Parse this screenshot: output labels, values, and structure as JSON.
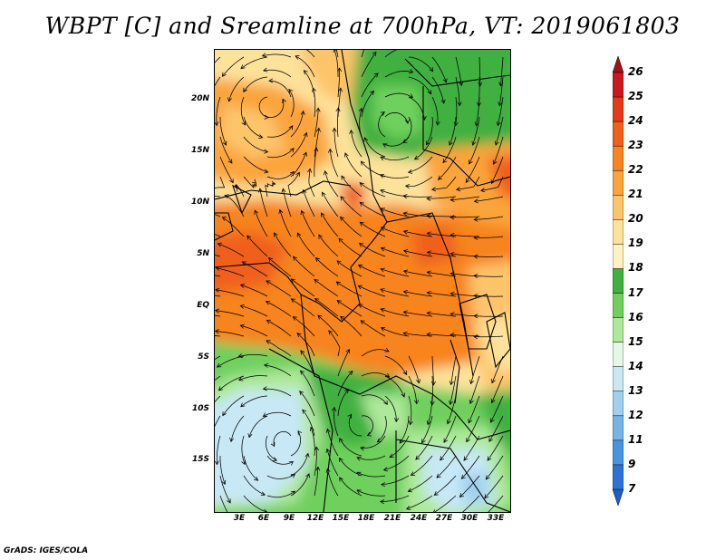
{
  "title": "WBPT [C] and Sreamline at 700hPa, VT: 2019061803",
  "credit": "GrADS: IGES/COLA",
  "lat_labels": [
    "20N",
    "15N",
    "10N",
    "5N",
    "EQ",
    "5S",
    "10S",
    "15S"
  ],
  "lon_labels": [
    "3E",
    "6E",
    "9E",
    "12E",
    "15E",
    "18E",
    "21E",
    "24E",
    "27E",
    "30E",
    "33E"
  ],
  "colorbar": {
    "labels": [
      "26",
      "25",
      "24",
      "23",
      "22",
      "21",
      "20",
      "19",
      "18",
      "17",
      "16",
      "15",
      "14",
      "13",
      "12",
      "11",
      "9",
      "7"
    ],
    "colors": [
      "#a50f15",
      "#cb181d",
      "#e33b16",
      "#f0601a",
      "#f7841f",
      "#fba43a",
      "#fdc46a",
      "#fde29a",
      "#fdf3be",
      "#3fb13f",
      "#6fd05d",
      "#aee99a",
      "#e5f8e5",
      "#c8e8f6",
      "#9fd0f0",
      "#74b5ea",
      "#4596e2",
      "#2b74d6",
      "#1f5cc6"
    ]
  }
}
